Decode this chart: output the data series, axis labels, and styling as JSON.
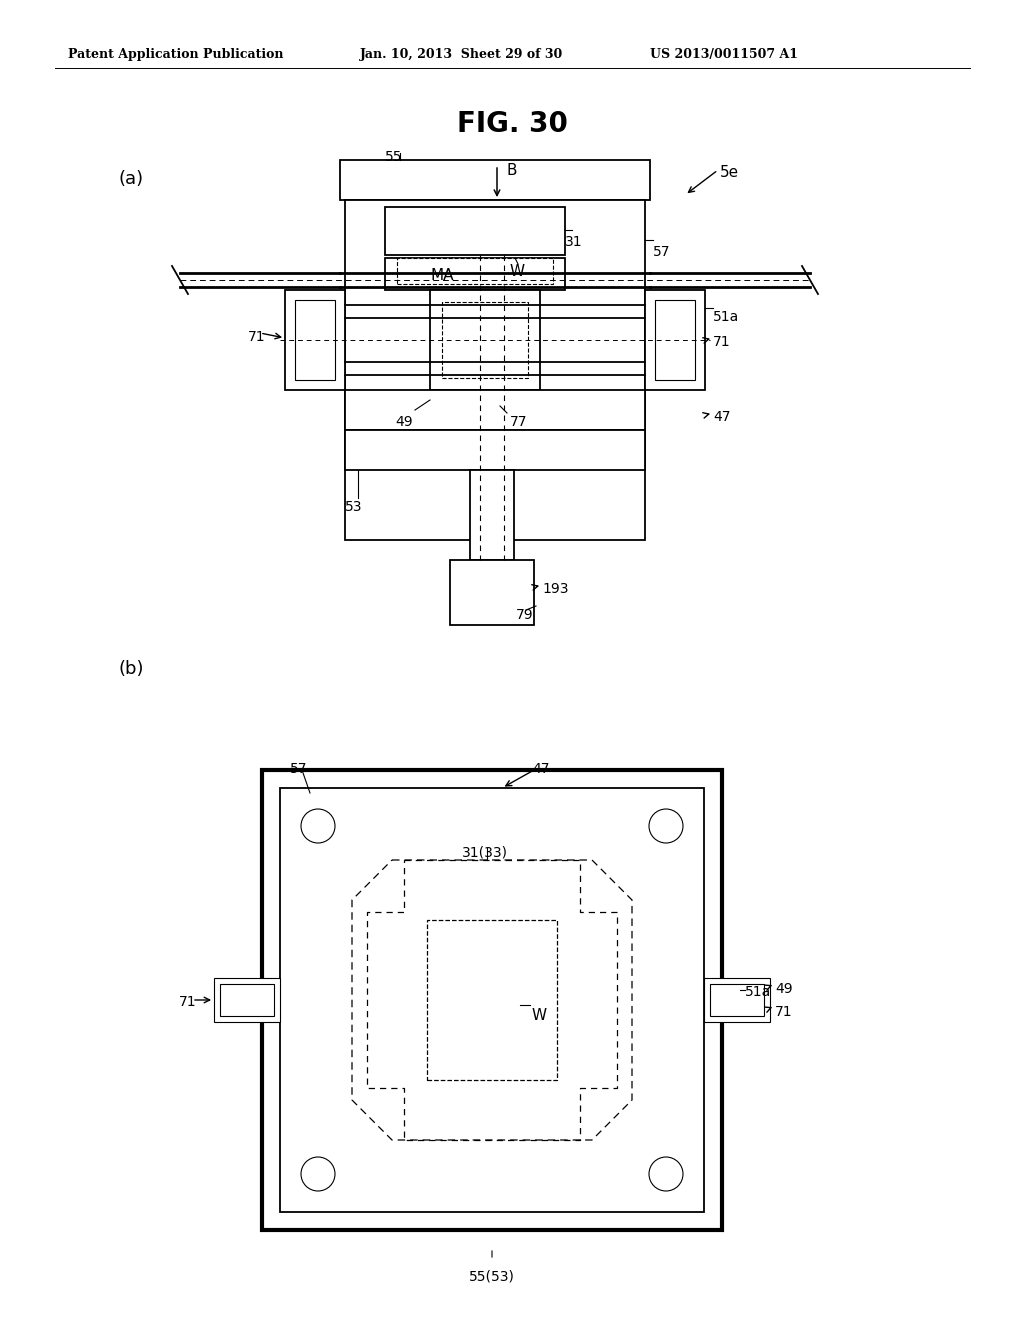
{
  "bg_color": "#ffffff",
  "header_left": "Patent Application Publication",
  "header_mid": "Jan. 10, 2013  Sheet 29 of 30",
  "header_right": "US 2013/0011507 A1",
  "fig_title": "FIG. 30",
  "label_a": "(a)",
  "label_b": "(b)"
}
